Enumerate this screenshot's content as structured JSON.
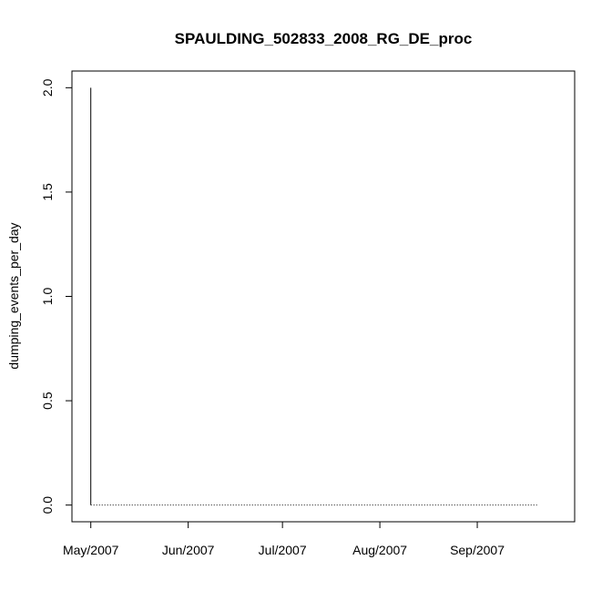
{
  "chart_data": {
    "type": "line",
    "title": "SPAULDING_502833_2008_RG_DE_proc",
    "xlabel": "",
    "ylabel": "dumping_events_per_day",
    "x_ticks": [
      "May/2007",
      "Jun/2007",
      "Jul/2007",
      "Aug/2007",
      "Sep/2007"
    ],
    "y_ticks": [
      "0.0",
      "0.5",
      "1.0",
      "1.5",
      "2.0"
    ],
    "xlim": [
      "2007-04-25",
      "2007-10-02"
    ],
    "ylim": [
      -0.08,
      2.08
    ],
    "series": [
      {
        "points": [
          {
            "x": "2007-05-01",
            "y": 2
          },
          {
            "x": "2007-05-02",
            "y": 0
          },
          {
            "x": "2007-09-20",
            "y": 0
          }
        ]
      }
    ],
    "grid": false,
    "legend": "none"
  }
}
